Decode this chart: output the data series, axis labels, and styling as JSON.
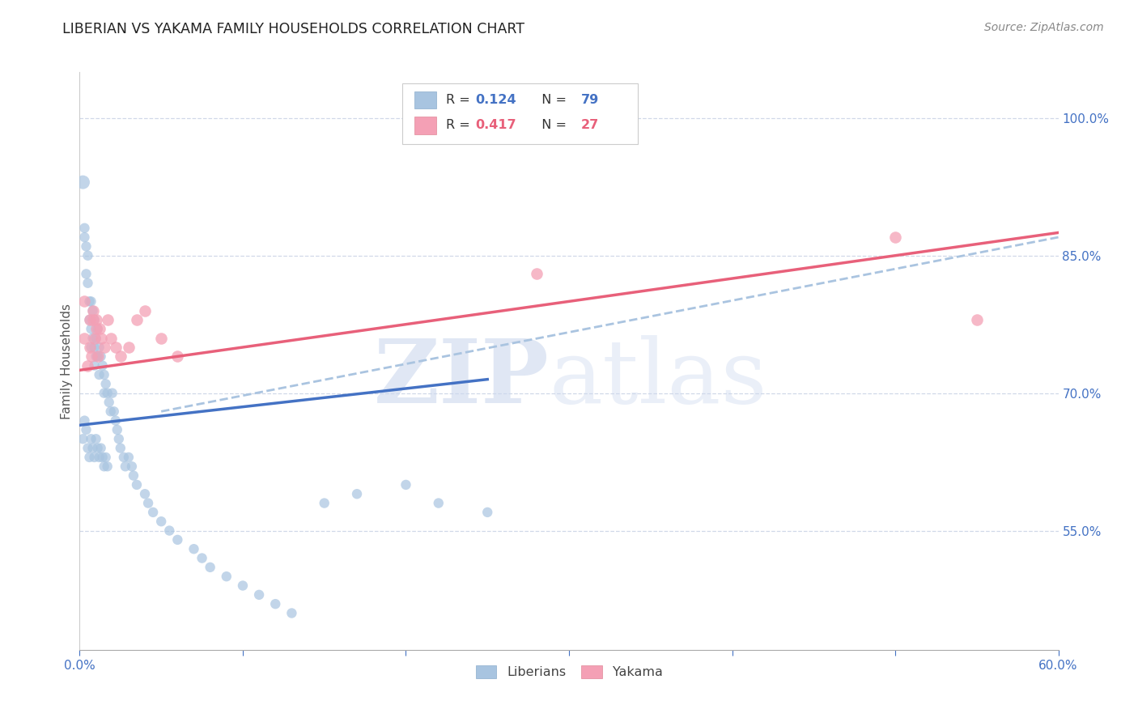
{
  "title": "LIBERIAN VS YAKAMA FAMILY HOUSEHOLDS CORRELATION CHART",
  "source": "Source: ZipAtlas.com",
  "ylabel": "Family Households",
  "yticks": [
    "100.0%",
    "85.0%",
    "70.0%",
    "55.0%"
  ],
  "ytick_values": [
    1.0,
    0.85,
    0.7,
    0.55
  ],
  "xlim": [
    0.0,
    0.6
  ],
  "ylim": [
    0.42,
    1.05
  ],
  "liberian_color": "#a8c4e0",
  "yakama_color": "#f4a0b5",
  "liberian_line_color": "#4472c4",
  "yakama_line_color": "#e8607a",
  "dashed_line_color": "#aac4e0",
  "background_color": "#ffffff",
  "grid_color": "#d0d8e8",
  "liberian_x": [
    0.002,
    0.003,
    0.003,
    0.004,
    0.004,
    0.005,
    0.005,
    0.006,
    0.006,
    0.007,
    0.007,
    0.007,
    0.008,
    0.008,
    0.009,
    0.009,
    0.009,
    0.01,
    0.01,
    0.011,
    0.011,
    0.012,
    0.012,
    0.013,
    0.014,
    0.015,
    0.015,
    0.016,
    0.017,
    0.018,
    0.019,
    0.02,
    0.021,
    0.022,
    0.023,
    0.024,
    0.025,
    0.027,
    0.028,
    0.03,
    0.032,
    0.033,
    0.035,
    0.04,
    0.042,
    0.045,
    0.05,
    0.055,
    0.06,
    0.07,
    0.075,
    0.08,
    0.09,
    0.1,
    0.11,
    0.12,
    0.13,
    0.15,
    0.17,
    0.2,
    0.22,
    0.25,
    0.002,
    0.003,
    0.004,
    0.005,
    0.006,
    0.007,
    0.008,
    0.009,
    0.01,
    0.011,
    0.012,
    0.013,
    0.014,
    0.015,
    0.016,
    0.017
  ],
  "liberian_y": [
    0.93,
    0.88,
    0.87,
    0.86,
    0.83,
    0.82,
    0.85,
    0.8,
    0.78,
    0.8,
    0.77,
    0.75,
    0.79,
    0.76,
    0.78,
    0.75,
    0.73,
    0.76,
    0.74,
    0.77,
    0.74,
    0.75,
    0.72,
    0.74,
    0.73,
    0.72,
    0.7,
    0.71,
    0.7,
    0.69,
    0.68,
    0.7,
    0.68,
    0.67,
    0.66,
    0.65,
    0.64,
    0.63,
    0.62,
    0.63,
    0.62,
    0.61,
    0.6,
    0.59,
    0.58,
    0.57,
    0.56,
    0.55,
    0.54,
    0.53,
    0.52,
    0.51,
    0.5,
    0.49,
    0.48,
    0.47,
    0.46,
    0.58,
    0.59,
    0.6,
    0.58,
    0.57,
    0.65,
    0.67,
    0.66,
    0.64,
    0.63,
    0.65,
    0.64,
    0.63,
    0.65,
    0.64,
    0.63,
    0.64,
    0.63,
    0.62,
    0.63,
    0.62
  ],
  "liberian_sizes": [
    150,
    80,
    80,
    80,
    80,
    80,
    80,
    80,
    80,
    80,
    80,
    80,
    80,
    80,
    80,
    80,
    80,
    80,
    80,
    80,
    80,
    80,
    80,
    80,
    80,
    80,
    80,
    80,
    80,
    80,
    80,
    80,
    80,
    80,
    80,
    80,
    80,
    80,
    80,
    80,
    80,
    80,
    80,
    80,
    80,
    80,
    80,
    80,
    80,
    80,
    80,
    80,
    80,
    80,
    80,
    80,
    80,
    80,
    80,
    80,
    80,
    80,
    80,
    80,
    80,
    80,
    80,
    80,
    80,
    80,
    80,
    80,
    80,
    80,
    80,
    80,
    80,
    80
  ],
  "yakama_x": [
    0.003,
    0.005,
    0.006,
    0.007,
    0.008,
    0.009,
    0.01,
    0.011,
    0.013,
    0.015,
    0.017,
    0.019,
    0.022,
    0.025,
    0.03,
    0.035,
    0.04,
    0.05,
    0.06,
    0.28,
    0.5,
    0.55,
    0.003,
    0.006,
    0.008,
    0.01,
    0.012
  ],
  "yakama_y": [
    0.76,
    0.73,
    0.75,
    0.74,
    0.78,
    0.76,
    0.77,
    0.74,
    0.76,
    0.75,
    0.78,
    0.76,
    0.75,
    0.74,
    0.75,
    0.78,
    0.79,
    0.76,
    0.74,
    0.83,
    0.87,
    0.78,
    0.8,
    0.78,
    0.79,
    0.78,
    0.77
  ],
  "liberian_trend_x": [
    0.0,
    0.25
  ],
  "liberian_trend_y": [
    0.665,
    0.715
  ],
  "yakama_trend_x": [
    0.0,
    0.6
  ],
  "yakama_trend_y": [
    0.725,
    0.875
  ],
  "dashed_trend_x": [
    0.05,
    0.6
  ],
  "dashed_trend_y": [
    0.68,
    0.87
  ]
}
